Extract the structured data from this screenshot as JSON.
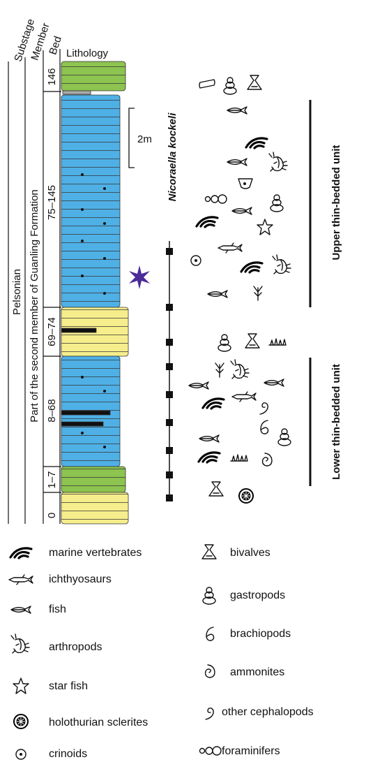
{
  "headers": {
    "substage": "Substage",
    "member": "Member",
    "bed": "Bed",
    "lithology": "Lithology"
  },
  "substage": "Pelsonian",
  "member": "Part of the second member of Guanling Formation",
  "beds": [
    "146",
    "75–145",
    "69–74",
    "8–68",
    "1–7",
    "0"
  ],
  "scale": "2m",
  "species": "Nicoraella kockeli",
  "units": [
    "Upper thin-bedded unit",
    "Lower thin-bedded unit"
  ],
  "legend": [
    "marine vertebrates",
    "ichthyosaurs",
    "fish",
    "arthropods",
    "star fish",
    "holothurian sclerites",
    "crinoids",
    "bivalves",
    "gastropods",
    "brachiopods",
    "ammonites",
    "other cephalopods",
    "foraminifers"
  ]
}
